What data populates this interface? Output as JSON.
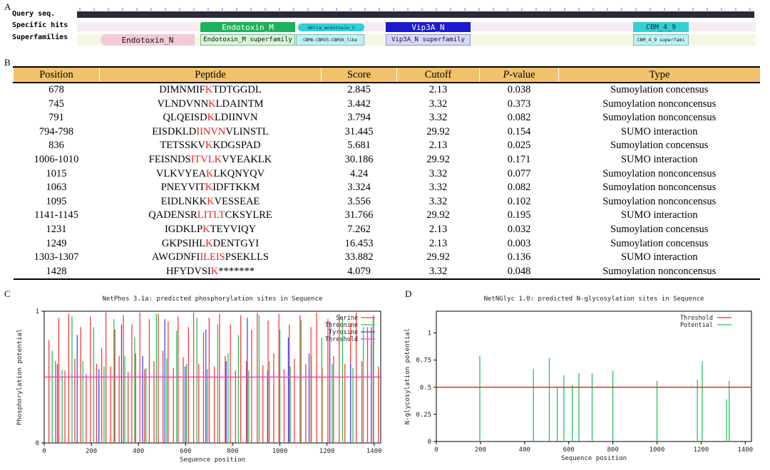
{
  "panels": {
    "a": "A",
    "b": "B",
    "c": "C",
    "d": "D"
  },
  "panel_a": {
    "row_labels": {
      "query": "Query seq.",
      "specific": "Specific hits",
      "super": "Superfamilies"
    },
    "specific_hits": [
      "Endotoxin_M",
      "delta_endotoxin_C",
      "Vip3A_N",
      "CBM_4_9"
    ],
    "superfamilies": [
      "Endotoxin_N",
      "Endotoxin_M superfamily",
      "CBM6-CBM35-CBM36_like",
      "Vip3A_N superfamily",
      "CBM_4_9 superfami"
    ]
  },
  "table": {
    "headers": {
      "position": "Position",
      "peptide": "Peptide",
      "score": "Score",
      "cutoff": "Cutoff",
      "p_letter": "P",
      "p_rest": "-value",
      "type": "Type"
    },
    "rows": [
      {
        "position": "678",
        "pre": "DIMNMIF",
        "hl": "K",
        "post": "TDTGGDL",
        "score": "2.845",
        "cutoff": "2.13",
        "p": "0.038",
        "type": "Sumoylation concensus"
      },
      {
        "position": "745",
        "pre": "VLNDVNN",
        "hl": "K",
        "post": "LDAINTM",
        "score": "3.442",
        "cutoff": "3.32",
        "p": "0.373",
        "type": "Sumoylation nonconcensus"
      },
      {
        "position": "791",
        "pre": "QLQEISD",
        "hl": "K",
        "post": "LDIINVN",
        "score": "3.794",
        "cutoff": "3.32",
        "p": "0.082",
        "type": "Sumoylation nonconcensus"
      },
      {
        "position": "794-798",
        "pre": "EISDKLD",
        "hl": "IINVN",
        "post": "VLINSTL",
        "score": "31.445",
        "cutoff": "29.92",
        "p": "0.154",
        "type": "SUMO interaction"
      },
      {
        "position": "836",
        "pre": "TETSSKV",
        "hl": "K",
        "post": "KDGSPAD",
        "score": "5.681",
        "cutoff": "2.13",
        "p": "0.025",
        "type": "Sumoylation concensus"
      },
      {
        "position": "1006-1010",
        "pre": "FEISNDS",
        "hl": "ITVLK",
        "post": "VYEAKLK",
        "score": "30.186",
        "cutoff": "29.92",
        "p": "0.171",
        "type": "SUMO interaction"
      },
      {
        "position": "1015",
        "pre": "VLKVYEA",
        "hl": "K",
        "post": "LKQNYQV",
        "score": "4.24",
        "cutoff": "3.32",
        "p": "0.077",
        "type": "Sumoylation nonconcensus"
      },
      {
        "position": "1063",
        "pre": "PNEYVIT",
        "hl": "K",
        "post": "IDFTKKM",
        "score": "3.324",
        "cutoff": "3.32",
        "p": "0.082",
        "type": "Sumoylation nonconcensus"
      },
      {
        "position": "1095",
        "pre": "EIDLNKK",
        "hl": "K",
        "post": "VESSEAE",
        "score": "3.556",
        "cutoff": "3.32",
        "p": "0.102",
        "type": "Sumoylation nonconcensus"
      },
      {
        "position": "1141-1145",
        "pre": "QADENSR",
        "hl": "LITLT",
        "post": "CKSYLRE",
        "score": "31.766",
        "cutoff": "29.92",
        "p": "0.195",
        "type": "SUMO interaction"
      },
      {
        "position": "1231",
        "pre": "IGDKLP",
        "hl": "K",
        "post": "TEYVIQY",
        "score": "7.262",
        "cutoff": "2.13",
        "p": "0.032",
        "type": "Sumoylation concensus"
      },
      {
        "position": "1249",
        "pre": "GKPSIHL",
        "hl": "K",
        "post": "DENTGYI",
        "score": "16.453",
        "cutoff": "2.13",
        "p": "0.003",
        "type": "Sumoylation concensus"
      },
      {
        "position": "1303-1307",
        "pre": "AWGDNFI",
        "hl": "ILEIS",
        "post": "PSEKLLS",
        "score": "33.882",
        "cutoff": "29.92",
        "p": "0.136",
        "type": "SUMO interaction"
      },
      {
        "position": "1428",
        "pre": "HFYDVSI",
        "hl": "K",
        "post": "*******",
        "score": "4.079",
        "cutoff": "3.32",
        "p": "0.048",
        "type": "Sumoylation nonconcensus"
      }
    ]
  },
  "chart_data": [
    {
      "type": "bar",
      "title": "NetPhos 3.1a: predicted phosphorylation sites in Sequence",
      "xlabel": "Sequence position",
      "ylabel": "Phosphorylation potential",
      "xlim": [
        0,
        1428
      ],
      "ylim": [
        0,
        1.0
      ],
      "xticks": [
        0,
        200,
        400,
        600,
        800,
        1000,
        1200,
        1400
      ],
      "yticks": [
        0,
        1
      ],
      "threshold": 0.5,
      "legend": [
        "Serine",
        "Threonine",
        "Tyrosine",
        "Threshold"
      ],
      "colors": {
        "Serine": "#ff3b3b",
        "Threonine": "#22c55e",
        "Tyrosine": "#3b4bff",
        "Threshold": "#ff3bd6"
      },
      "series": [
        {
          "name": "Serine",
          "x": [
            20,
            48,
            62,
            88,
            104,
            130,
            155,
            178,
            196,
            222,
            244,
            262,
            282,
            300,
            318,
            336,
            356,
            372,
            388,
            406,
            426,
            446,
            466,
            484,
            504,
            526,
            548,
            568,
            590,
            612,
            634,
            656,
            676,
            700,
            722,
            744,
            768,
            790,
            812,
            834,
            858,
            880,
            904,
            928,
            950,
            974,
            996,
            1018,
            1040,
            1062,
            1086,
            1110,
            1132,
            1156,
            1180,
            1204,
            1228,
            1252,
            1276,
            1300,
            1324,
            1348,
            1372,
            1396,
            1418
          ],
          "values": [
            0.78,
            0.62,
            0.95,
            0.55,
            0.98,
            0.64,
            0.88,
            0.52,
            0.96,
            0.6,
            0.72,
            0.99,
            0.58,
            0.86,
            0.66,
            0.97,
            0.54,
            0.9,
            0.68,
            0.99,
            0.56,
            0.94,
            0.62,
            0.98,
            0.7,
            0.92,
            0.57,
            0.96,
            0.65,
            0.88,
            0.99,
            0.6,
            0.84,
            0.95,
            0.58,
            0.98,
            0.66,
            0.9,
            0.55,
            0.97,
            0.62,
            0.86,
            0.99,
            0.59,
            0.93,
            0.68,
            0.98,
            0.56,
            0.9,
            0.64,
            0.97,
            0.6,
            0.88,
            0.99,
            0.57,
            0.94,
            0.66,
            0.98,
            0.6,
            0.91,
            0.99,
            0.62,
            0.88,
            0.96,
            0.58
          ]
        },
        {
          "name": "Threonine",
          "x": [
            34,
            76,
            118,
            164,
            210,
            254,
            296,
            342,
            384,
            432,
            476,
            520,
            562,
            604,
            648,
            692,
            736,
            780,
            824,
            868,
            912,
            956,
            1000,
            1044,
            1090,
            1134,
            1178,
            1222,
            1266,
            1310,
            1354,
            1398
          ],
          "values": [
            0.7,
            0.55,
            0.96,
            0.62,
            0.88,
            0.58,
            0.94,
            0.66,
            0.8,
            0.57,
            0.98,
            0.64,
            0.85,
            0.6,
            0.95,
            0.56,
            0.9,
            0.68,
            0.82,
            0.55,
            0.97,
            0.62,
            0.86,
            0.58,
            0.93,
            0.66,
            0.8,
            0.6,
            0.95,
            0.57,
            0.88,
            0.97
          ]
        },
        {
          "name": "Tyrosine",
          "x": [
            56,
            140,
            232,
            328,
            418,
            512,
            598,
            686,
            772,
            862,
            948,
            1036,
            1124,
            1212,
            1300,
            1388
          ],
          "values": [
            0.6,
            0.82,
            0.56,
            0.9,
            0.66,
            0.94,
            0.58,
            0.86,
            0.62,
            0.95,
            0.55,
            0.8,
            0.68,
            0.92,
            0.6,
            0.88
          ]
        }
      ]
    },
    {
      "type": "bar",
      "title": "NetNGlyc 1.0: predicted N-glycosylation sites in Sequence",
      "xlabel": "Sequence position",
      "ylabel": "N-glycosylation potential",
      "xlim": [
        0,
        1428
      ],
      "ylim": [
        0,
        1.2
      ],
      "xticks": [
        0,
        200,
        400,
        600,
        800,
        1000,
        1200,
        1400
      ],
      "yticks": [
        0,
        0.25,
        0.5,
        0.75,
        1
      ],
      "threshold": 0.5,
      "legend": [
        "Threshold",
        "Potential"
      ],
      "colors": {
        "Threshold": "#ff2020",
        "Potential": "#22c55e"
      },
      "series": [
        {
          "name": "Potential",
          "x": [
            197,
            440,
            512,
            548,
            578,
            616,
            646,
            706,
            800,
            1000,
            1183,
            1205,
            1315,
            1327
          ],
          "values": [
            0.79,
            0.67,
            0.77,
            0.5,
            0.61,
            0.52,
            0.63,
            0.63,
            0.65,
            0.56,
            0.57,
            0.74,
            0.39,
            0.56
          ]
        }
      ]
    }
  ]
}
